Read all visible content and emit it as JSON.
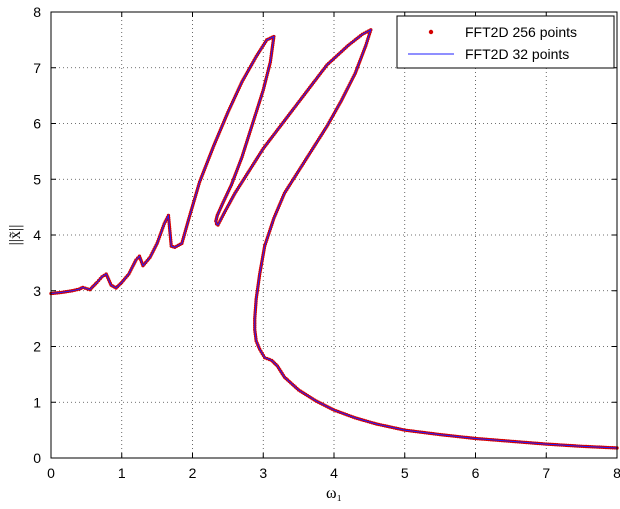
{
  "chart_data": {
    "type": "line",
    "title": "",
    "xlabel": "ω₁",
    "ylabel": "||x̃||",
    "xlim": [
      0,
      8
    ],
    "ylim": [
      0,
      8
    ],
    "xticks": [
      "0",
      "1",
      "2",
      "3",
      "4",
      "5",
      "6",
      "7",
      "8"
    ],
    "yticks": [
      "0",
      "1",
      "2",
      "3",
      "4",
      "5",
      "6",
      "7",
      "8"
    ],
    "grid": true,
    "legend_position": "top-right",
    "series": [
      {
        "name": "FFT2D 256 points",
        "style": "dots",
        "color": "#d40000",
        "x": [
          0.0,
          0.15,
          0.3,
          0.4,
          0.45,
          0.55,
          0.65,
          0.72,
          0.78,
          0.85,
          0.92,
          1.0,
          1.1,
          1.2,
          1.25,
          1.3,
          1.4,
          1.5,
          1.6,
          1.66,
          1.7,
          1.75,
          1.85,
          1.95,
          2.1,
          2.3,
          2.5,
          2.7,
          2.9,
          3.05,
          3.15,
          3.1,
          3.0,
          2.85,
          2.7,
          2.55,
          2.42,
          2.35,
          2.33,
          2.34,
          2.36,
          2.45,
          2.6,
          2.8,
          3.0,
          3.3,
          3.6,
          3.9,
          4.2,
          4.4,
          4.52,
          4.45,
          4.3,
          4.1,
          3.9,
          3.7,
          3.5,
          3.3,
          3.15,
          3.02,
          2.95,
          2.9,
          2.88,
          2.88,
          2.9,
          2.95,
          3.02,
          3.12,
          3.2,
          3.3,
          3.5,
          3.75,
          4.0,
          4.3,
          4.6,
          5.0,
          5.5,
          6.0,
          6.5,
          7.0,
          7.5,
          8.0
        ],
        "y": [
          2.95,
          2.97,
          3.0,
          3.03,
          3.06,
          3.02,
          3.15,
          3.25,
          3.3,
          3.1,
          3.05,
          3.15,
          3.3,
          3.55,
          3.62,
          3.45,
          3.6,
          3.85,
          4.2,
          4.35,
          3.8,
          3.78,
          3.85,
          4.3,
          4.95,
          5.6,
          6.2,
          6.75,
          7.2,
          7.5,
          7.56,
          7.1,
          6.6,
          6.0,
          5.4,
          4.9,
          4.55,
          4.35,
          4.25,
          4.2,
          4.18,
          4.4,
          4.75,
          5.15,
          5.55,
          6.05,
          6.55,
          7.05,
          7.4,
          7.6,
          7.68,
          7.4,
          6.9,
          6.4,
          5.95,
          5.55,
          5.15,
          4.75,
          4.3,
          3.8,
          3.3,
          2.85,
          2.5,
          2.3,
          2.1,
          1.95,
          1.8,
          1.75,
          1.65,
          1.45,
          1.22,
          1.02,
          0.86,
          0.72,
          0.61,
          0.5,
          0.42,
          0.35,
          0.3,
          0.25,
          0.21,
          0.18
        ]
      },
      {
        "name": "FFT2D 32 points",
        "style": "line",
        "color": "#1f1fff",
        "x": [
          0.0,
          0.15,
          0.3,
          0.4,
          0.45,
          0.55,
          0.65,
          0.72,
          0.78,
          0.85,
          0.92,
          1.0,
          1.1,
          1.2,
          1.25,
          1.3,
          1.4,
          1.5,
          1.6,
          1.66,
          1.7,
          1.75,
          1.85,
          1.95,
          2.1,
          2.3,
          2.5,
          2.7,
          2.9,
          3.05,
          3.15,
          3.1,
          3.0,
          2.85,
          2.7,
          2.55,
          2.42,
          2.35,
          2.33,
          2.34,
          2.36,
          2.45,
          2.6,
          2.8,
          3.0,
          3.3,
          3.6,
          3.9,
          4.2,
          4.4,
          4.52,
          4.45,
          4.3,
          4.1,
          3.9,
          3.7,
          3.5,
          3.3,
          3.15,
          3.02,
          2.95,
          2.9,
          2.88,
          2.88,
          2.9,
          2.95,
          3.02,
          3.12,
          3.2,
          3.3,
          3.5,
          3.75,
          4.0,
          4.3,
          4.6,
          5.0,
          5.5,
          6.0,
          6.5,
          7.0,
          7.5,
          8.0
        ],
        "y": [
          2.95,
          2.97,
          3.0,
          3.03,
          3.06,
          3.02,
          3.15,
          3.25,
          3.3,
          3.1,
          3.05,
          3.15,
          3.3,
          3.55,
          3.62,
          3.45,
          3.6,
          3.85,
          4.2,
          4.35,
          3.8,
          3.78,
          3.85,
          4.3,
          4.95,
          5.6,
          6.2,
          6.75,
          7.2,
          7.5,
          7.56,
          7.1,
          6.6,
          6.0,
          5.4,
          4.9,
          4.55,
          4.35,
          4.25,
          4.2,
          4.18,
          4.4,
          4.75,
          5.15,
          5.55,
          6.05,
          6.55,
          7.05,
          7.4,
          7.6,
          7.68,
          7.4,
          6.9,
          6.4,
          5.95,
          5.55,
          5.15,
          4.75,
          4.3,
          3.8,
          3.3,
          2.85,
          2.5,
          2.3,
          2.1,
          1.95,
          1.8,
          1.75,
          1.65,
          1.45,
          1.22,
          1.02,
          0.86,
          0.72,
          0.61,
          0.5,
          0.42,
          0.35,
          0.3,
          0.25,
          0.21,
          0.18
        ]
      }
    ]
  }
}
